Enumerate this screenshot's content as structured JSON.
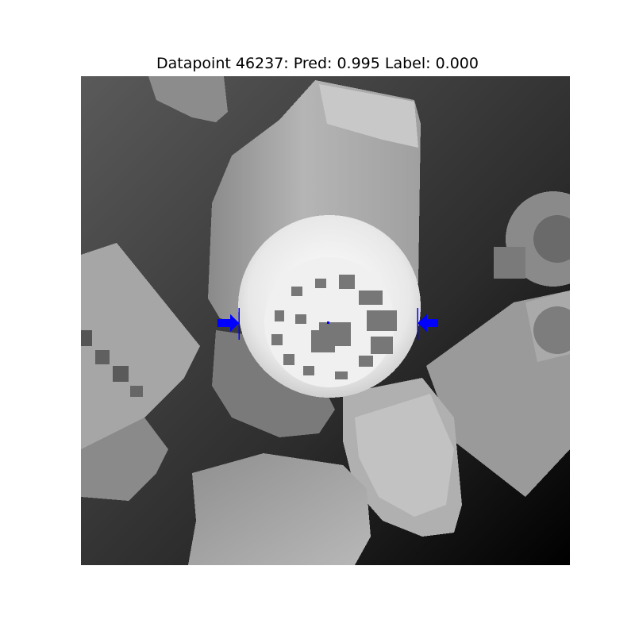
{
  "figure": {
    "title": "Datapoint 46237: Pred: 0.995 Label: 0.000",
    "image": "depth image (grayscale) of cluttered objects with a round gear/wheel-shaped object in the center; blue grasp markers",
    "grasp_marker_color": "#0000ff"
  }
}
